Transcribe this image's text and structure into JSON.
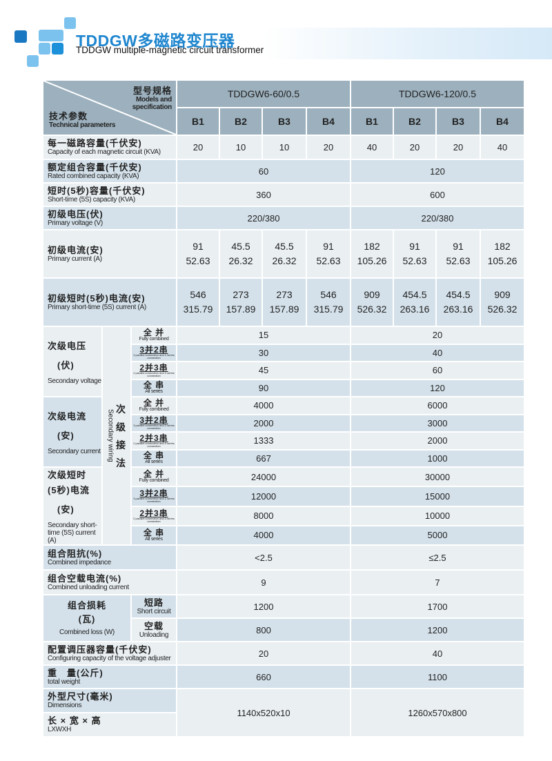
{
  "page": {
    "title": "TDDGW多磁路变压器",
    "subtitle": "TDDGW multiple-magnetic circuit transformer",
    "colors": {
      "accent": "#1f86cf",
      "header": "#9cb0bd",
      "row_light": "#eaeff2",
      "row_blue": "#d4e1ea"
    }
  },
  "header": {
    "model_cn": "型号规格",
    "model_en": "Models and specification",
    "param_cn": "技术参数",
    "param_en": "Technical parameters",
    "models": [
      "TDDGW6-60/0.5",
      "TDDGW6-120/0.5"
    ],
    "sub": [
      "B1",
      "B2",
      "B3",
      "B4",
      "B1",
      "B2",
      "B3",
      "B4"
    ]
  },
  "rows_top": [
    {
      "cn": "每一磁路容量(千伏安)",
      "en": "Capacity of each magnetic circuit (KVA)",
      "values": [
        "20",
        "10",
        "10",
        "20",
        "40",
        "20",
        "20",
        "40"
      ]
    },
    {
      "cn": "额定组合容量(千伏安)",
      "en": "Rated combined capacity (KVA)",
      "values": [
        "60",
        "120"
      ]
    },
    {
      "cn": "短时(5秒)容量(千伏安)",
      "en": "Short-time (5S) capacity (KVA)",
      "values": [
        "360",
        "600"
      ]
    },
    {
      "cn": "初级电压(伏)",
      "en": "Primary voltage (V)",
      "values": [
        "220/380",
        "220/380"
      ]
    },
    {
      "cn": "初级电流(安)",
      "en": "Primary current (A)",
      "values": [
        [
          "91",
          "52.63"
        ],
        [
          "45.5",
          "26.32"
        ],
        [
          "45.5",
          "26.32"
        ],
        [
          "91",
          "52.63"
        ],
        [
          "182",
          "105.26"
        ],
        [
          "91",
          "52.63"
        ],
        [
          "91",
          "52.63"
        ],
        [
          "182",
          "105.26"
        ]
      ]
    },
    {
      "cn": "初级短时(5秒)电流(安)",
      "en": "Primary short-time (5S) current (A)",
      "values": [
        [
          "546",
          "315.79"
        ],
        [
          "273",
          "157.89"
        ],
        [
          "273",
          "157.89"
        ],
        [
          "546",
          "315.79"
        ],
        [
          "909",
          "526.32"
        ],
        [
          "454.5",
          "263.16"
        ],
        [
          "454.5",
          "263.16"
        ],
        [
          "909",
          "526.32"
        ]
      ]
    }
  ],
  "secondary": {
    "wiring_cn": "次级接法",
    "wiring_en": "Secondary wiring",
    "modes": [
      {
        "cn": "全 并",
        "en": "Fully combined"
      },
      {
        "cn": "3并2串",
        "en": "3 parallel connection and 2 series connection"
      },
      {
        "cn": "2并3串",
        "en": "2 parallel connection and 3 series connection"
      },
      {
        "cn": "全 串",
        "en": "All series"
      }
    ],
    "groups": [
      {
        "cn": "次级电压",
        "unit": "(伏)",
        "en": "Secondary voltage",
        "rows": [
          [
            "15",
            "20"
          ],
          [
            "30",
            "40"
          ],
          [
            "45",
            "60"
          ],
          [
            "90",
            "120"
          ]
        ]
      },
      {
        "cn": "次级电流",
        "unit": "(安)",
        "en": "Secondary current",
        "rows": [
          [
            "4000",
            "6000"
          ],
          [
            "2000",
            "3000"
          ],
          [
            "1333",
            "2000"
          ],
          [
            "667",
            "1000"
          ]
        ]
      },
      {
        "cn": "次级短时",
        "cn2": "(5秒)电流",
        "unit": "(安)",
        "en": "Secondary short-time (5S) current (A)",
        "rows": [
          [
            "24000",
            "30000"
          ],
          [
            "12000",
            "15000"
          ],
          [
            "8000",
            "10000"
          ],
          [
            "4000",
            "5000"
          ]
        ]
      }
    ]
  },
  "rows_mid": [
    {
      "cn": "组合阻抗(%)",
      "en": "Combined impedance",
      "values": [
        "<2.5",
        "≤2.5"
      ]
    },
    {
      "cn": "组合空载电流(%)",
      "en": "Combined unloading current",
      "values": [
        "9",
        "7"
      ]
    }
  ],
  "loss": {
    "cn": "组合损耗",
    "unit": "(瓦)",
    "en": "Combined loss (W)",
    "rows": [
      {
        "cn": "短路",
        "en": "Short circuit",
        "values": [
          "1200",
          "1700"
        ]
      },
      {
        "cn": "空载",
        "en": "Unloading",
        "values": [
          "800",
          "1200"
        ]
      }
    ]
  },
  "rows_bottom": [
    {
      "cn": "配置调压器容量(千伏安)",
      "en": "Configuring capacity of the voltage adjuster",
      "values": [
        "20",
        "40"
      ]
    },
    {
      "cn": "重　量(公斤)",
      "en": "total weight",
      "values": [
        "660",
        "1100"
      ]
    }
  ],
  "dimensions": {
    "cn": "外型尺寸(毫米)",
    "en": "Dimensions",
    "cn2": "长 × 宽 × 高",
    "en2": "LXWXH",
    "values": [
      "1140x520x10",
      "1260x570x800"
    ]
  }
}
